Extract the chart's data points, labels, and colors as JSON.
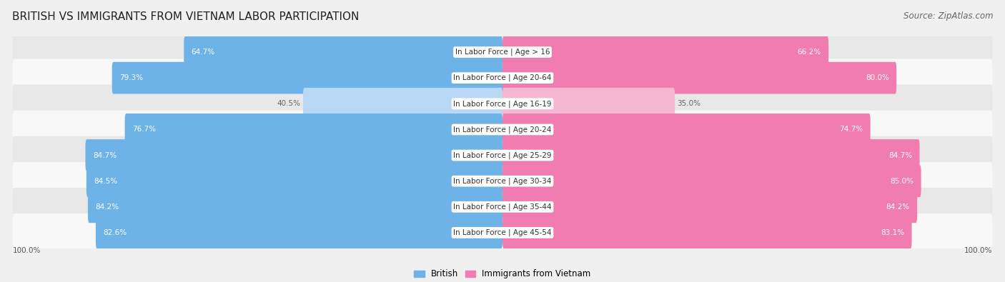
{
  "title": "BRITISH VS IMMIGRANTS FROM VIETNAM LABOR PARTICIPATION",
  "source": "Source: ZipAtlas.com",
  "categories": [
    "In Labor Force | Age > 16",
    "In Labor Force | Age 20-64",
    "In Labor Force | Age 16-19",
    "In Labor Force | Age 20-24",
    "In Labor Force | Age 25-29",
    "In Labor Force | Age 30-34",
    "In Labor Force | Age 35-44",
    "In Labor Force | Age 45-54"
  ],
  "british_values": [
    64.7,
    79.3,
    40.5,
    76.7,
    84.7,
    84.5,
    84.2,
    82.6
  ],
  "vietnam_values": [
    66.2,
    80.0,
    35.0,
    74.7,
    84.7,
    85.0,
    84.2,
    83.1
  ],
  "british_color": "#6db3e8",
  "british_color_light": "#b8d8f5",
  "vietnam_color": "#f07cb0",
  "vietnam_color_light": "#f5b8d2",
  "background_color": "#f0f0f0",
  "row_bg_even": "#e8e8e8",
  "row_bg_odd": "#f8f8f8",
  "title_fontsize": 11,
  "source_fontsize": 8.5,
  "label_fontsize": 7.5,
  "value_fontsize": 7.5,
  "legend_fontsize": 8.5,
  "max_val": 100.0,
  "threshold": 50
}
